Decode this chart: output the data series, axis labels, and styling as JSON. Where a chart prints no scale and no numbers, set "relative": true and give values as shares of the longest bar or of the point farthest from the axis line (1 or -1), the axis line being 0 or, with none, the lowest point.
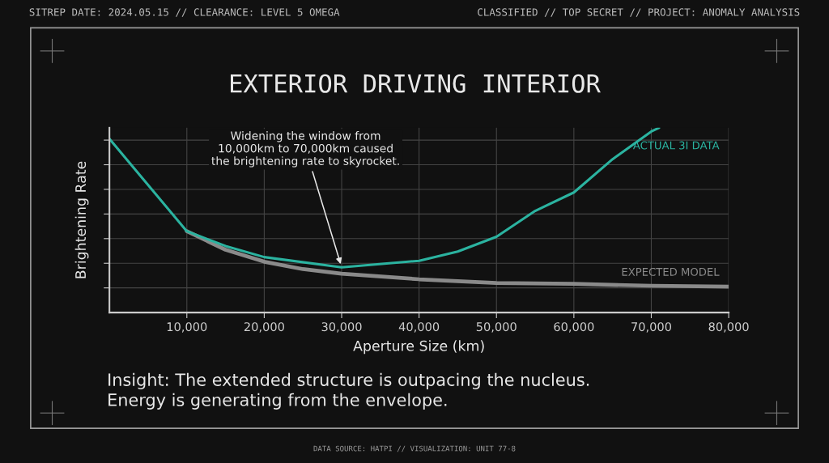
{
  "chart_data": {
    "type": "line",
    "title": "EXTERIOR DRIVING INTERIOR",
    "xlabel": "Aperture Size (km)",
    "ylabel": "Brightening Rate",
    "relative": true,
    "xlim": [
      0,
      80000
    ],
    "xticks": [
      {
        "value": 10000,
        "label": "10,000"
      },
      {
        "value": 20000,
        "label": "20,000"
      },
      {
        "value": 30000,
        "label": "30,000"
      },
      {
        "value": 40000,
        "label": "40,000"
      },
      {
        "value": 50000,
        "label": "50,000"
      },
      {
        "value": 60000,
        "label": "60,000"
      },
      {
        "value": 70000,
        "label": "70,000"
      },
      {
        "value": 80000,
        "label": "80,000"
      }
    ],
    "grid": true,
    "legend": false,
    "marker": "none",
    "line_style": "solid",
    "series": [
      {
        "name": "EXPECTED MODEL",
        "color": "#8a8a8a",
        "x": [
          10000,
          15000,
          20000,
          25000,
          30000,
          40000,
          50000,
          60000,
          70000,
          80000
        ],
        "values": [
          0.44,
          0.34,
          0.275,
          0.235,
          0.21,
          0.18,
          0.16,
          0.155,
          0.145,
          0.14
        ]
      },
      {
        "name": "ACTUAL 3I DATA",
        "color": "#2bb3a0",
        "x": [
          0,
          10000,
          15000,
          20000,
          30000,
          40000,
          45000,
          50000,
          55000,
          60000,
          65000,
          70000,
          71000
        ],
        "values": [
          0.94,
          0.44,
          0.36,
          0.3,
          0.245,
          0.28,
          0.33,
          0.41,
          0.55,
          0.65,
          0.83,
          0.98,
          1.0
        ]
      }
    ],
    "annotations": [
      {
        "text": "Widening the window from\n10,000km to 70,000km caused\nthe brightening rate to skyrocket.",
        "x": 30000,
        "y": 0.245
      },
      "SITREP DATE: 2024.05.15 // CLEARANCE: LEVEL 5 OMEGA",
      "CLASSIFIED // TOP SECRET // PROJECT: ANOMALY ANALYSIS",
      "Insight: The extended structure is outpacing the nucleus.\nEnergy is generating from the envelope.",
      "DATA SOURCE: HATPI // VISUALIZATION: UNIT 77-8"
    ]
  }
}
